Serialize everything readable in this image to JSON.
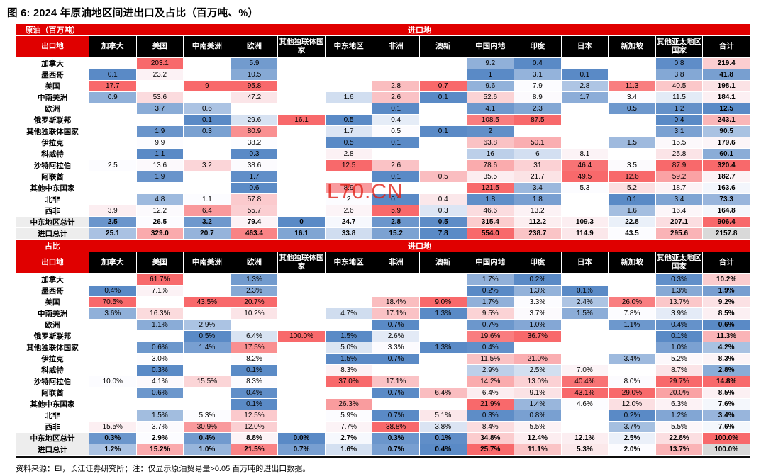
{
  "title": "图 6: 2024 年原油地区间进出口及占比（百万吨、%）",
  "footer": {
    "source_note": "资料来源：EI，长江证券研究所；注：仅显示原油贸易量>0.05 百万吨的进出口数据。"
  },
  "watermark": "L70.CN",
  "colors": {
    "header_red": "#E00000",
    "header_black": "#000000",
    "scale_low": "#5A8AC6",
    "scale_mid": "#FCFCFF",
    "scale_high": "#F8696B",
    "summary_label_bg": "#EDEDED",
    "grand_total_bg": "#D9D9D9"
  },
  "chart_data": [
    {
      "type": "heatmap",
      "unit_label": "原油（百万吨）",
      "corner_label": "出口地",
      "top_axis_label": "进口地",
      "columns": [
        "加拿大",
        "美国",
        "中南美洲",
        "欧洲",
        "其他独联体国家",
        "中东地区",
        "非洲",
        "澳新",
        "中国内地",
        "印度",
        "日本",
        "新加坡",
        "其他亚太地区国家",
        "合计"
      ],
      "rows": [
        {
          "label": "加拿大",
          "summary": false,
          "values": [
            "",
            "203.1",
            "",
            "5.9",
            "",
            "",
            "",
            "",
            "9.2",
            "0.4",
            "",
            "",
            "0.8",
            "219.4"
          ]
        },
        {
          "label": "墨西哥",
          "summary": false,
          "values": [
            "0.1",
            "23.2",
            "",
            "10.5",
            "",
            "",
            "",
            "",
            "1",
            "3.1",
            "0.1",
            "",
            "3.8",
            "41.8"
          ]
        },
        {
          "label": "美国",
          "summary": false,
          "values": [
            "17.7",
            "",
            "9",
            "95.8",
            "",
            "",
            "2.8",
            "0.7",
            "9.6",
            "7.9",
            "2.8",
            "11.3",
            "40.5",
            "198.1"
          ]
        },
        {
          "label": "中南美洲",
          "summary": false,
          "values": [
            "0.9",
            "53.6",
            "",
            "47.2",
            "",
            "1.6",
            "2.6",
            "0.1",
            "52.6",
            "8.9",
            "1.7",
            "3.4",
            "11.5",
            "184.1"
          ]
        },
        {
          "label": "欧洲",
          "summary": false,
          "values": [
            "",
            "3.7",
            "0.6",
            "",
            "",
            "",
            "0.1",
            "",
            "4.1",
            "2.3",
            "",
            "0.5",
            "1.2",
            "12.5"
          ]
        },
        {
          "label": "俄罗斯联邦",
          "summary": false,
          "values": [
            "",
            "",
            "0.1",
            "29.6",
            "16.1",
            "0.5",
            "0.4",
            "",
            "108.5",
            "87.5",
            "",
            "",
            "0.4",
            "243.1"
          ]
        },
        {
          "label": "其他独联体国家",
          "summary": false,
          "values": [
            "",
            "1.9",
            "0.3",
            "80.9",
            "",
            "1.7",
            "0.5",
            "0.1",
            "2",
            "",
            "",
            "",
            "3.1",
            "90.5"
          ]
        },
        {
          "label": "伊拉克",
          "summary": false,
          "values": [
            "",
            "9.9",
            "",
            "38.2",
            "",
            "0.5",
            "0.1",
            "",
            "63.8",
            "50.1",
            "",
            "1.5",
            "15.5",
            "179.6"
          ]
        },
        {
          "label": "科威特",
          "summary": false,
          "values": [
            "",
            "1.1",
            "",
            "0.3",
            "",
            "2.8",
            "",
            "",
            "16",
            "6",
            "8.1",
            "",
            "25.8",
            "60.1"
          ]
        },
        {
          "label": "沙特阿拉伯",
          "summary": false,
          "values": [
            "2.5",
            "13.6",
            "3.2",
            "38.6",
            "",
            "12.5",
            "2.6",
            "",
            "78.6",
            "31",
            "46.4",
            "3.5",
            "87.9",
            "320.4"
          ]
        },
        {
          "label": "阿联酋",
          "summary": false,
          "values": [
            "",
            "1.9",
            "",
            "1.7",
            "",
            "",
            "0.1",
            "0.5",
            "35.5",
            "21.7",
            "49.5",
            "12.6",
            "59.2",
            "182.7"
          ]
        },
        {
          "label": "其他中东国家",
          "summary": false,
          "values": [
            "",
            "",
            "",
            "0.6",
            "",
            "8.9",
            "",
            "",
            "121.5",
            "3.4",
            "5.3",
            "5.2",
            "18.7",
            "163.6"
          ]
        },
        {
          "label": "北非",
          "summary": false,
          "values": [
            "",
            "4.8",
            "1.1",
            "57.8",
            "",
            "2",
            "0.1",
            "0.4",
            "1.8",
            "1.8",
            "",
            "0.1",
            "3.4",
            "73.3"
          ]
        },
        {
          "label": "西非",
          "summary": false,
          "values": [
            "3.9",
            "12.2",
            "6.4",
            "55.7",
            "",
            "2.6",
            "5.9",
            "0.3",
            "46.6",
            "13.2",
            "",
            "1.6",
            "16.4",
            "164.8"
          ]
        },
        {
          "label": "中东地区总计",
          "summary": true,
          "values": [
            "2.5",
            "26.5",
            "3.2",
            "79.4",
            "0",
            "24.7",
            "2.8",
            "0.5",
            "315.4",
            "112.2",
            "109.3",
            "22.8",
            "207.1",
            "906.4"
          ]
        },
        {
          "label": "进口总计",
          "summary": true,
          "grand_total": true,
          "values": [
            "25.1",
            "329.0",
            "20.7",
            "463.4",
            "16.1",
            "33.8",
            "15.2",
            "7.8",
            "554.0",
            "238.7",
            "114.9",
            "43.5",
            "295.6",
            "2157.8"
          ]
        }
      ]
    },
    {
      "type": "heatmap",
      "unit_label": "占比",
      "corner_label": "出口地",
      "top_axis_label": "进口地",
      "columns": [
        "加拿大",
        "美国",
        "中南美洲",
        "欧洲",
        "其他独联体国家",
        "中东地区",
        "非洲",
        "澳新",
        "中国内地",
        "印度",
        "日本",
        "新加坡",
        "其他亚太地区国家",
        "合计"
      ],
      "rows": [
        {
          "label": "加拿大",
          "summary": false,
          "values": [
            "",
            "61.7%",
            "",
            "1.3%",
            "",
            "",
            "",
            "",
            "1.7%",
            "0.2%",
            "",
            "",
            "0.3%",
            "10.2%"
          ]
        },
        {
          "label": "墨西哥",
          "summary": false,
          "values": [
            "0.4%",
            "7.1%",
            "",
            "2.3%",
            "",
            "",
            "",
            "",
            "0.2%",
            "1.3%",
            "0.1%",
            "",
            "1.3%",
            "1.9%"
          ]
        },
        {
          "label": "美国",
          "summary": false,
          "values": [
            "70.5%",
            "",
            "43.5%",
            "20.7%",
            "",
            "",
            "18.4%",
            "9.0%",
            "1.7%",
            "3.3%",
            "2.4%",
            "26.0%",
            "13.7%",
            "9.2%"
          ]
        },
        {
          "label": "中南美洲",
          "summary": false,
          "values": [
            "3.6%",
            "16.3%",
            "",
            "10.2%",
            "",
            "4.7%",
            "17.1%",
            "1.3%",
            "9.5%",
            "3.7%",
            "1.5%",
            "7.8%",
            "3.9%",
            "8.5%"
          ]
        },
        {
          "label": "欧洲",
          "summary": false,
          "values": [
            "",
            "1.1%",
            "2.9%",
            "",
            "",
            "",
            "0.7%",
            "",
            "0.7%",
            "1.0%",
            "",
            "1.1%",
            "0.4%",
            "0.6%"
          ]
        },
        {
          "label": "俄罗斯联邦",
          "summary": false,
          "values": [
            "",
            "",
            "0.5%",
            "6.4%",
            "100.0%",
            "1.5%",
            "2.6%",
            "",
            "19.6%",
            "36.7%",
            "",
            "",
            "0.1%",
            "11.3%"
          ]
        },
        {
          "label": "其他独联体国家",
          "summary": false,
          "values": [
            "",
            "0.6%",
            "1.4%",
            "17.5%",
            "",
            "5.0%",
            "3.3%",
            "1.3%",
            "0.4%",
            "",
            "",
            "",
            "1.0%",
            "4.2%"
          ]
        },
        {
          "label": "伊拉克",
          "summary": false,
          "values": [
            "",
            "3.0%",
            "",
            "8.2%",
            "",
            "1.5%",
            "0.7%",
            "",
            "11.5%",
            "21.0%",
            "",
            "3.4%",
            "5.2%",
            "8.3%"
          ]
        },
        {
          "label": "科威特",
          "summary": false,
          "values": [
            "",
            "0.3%",
            "",
            "0.1%",
            "",
            "8.3%",
            "",
            "",
            "2.9%",
            "2.5%",
            "7.0%",
            "",
            "8.7%",
            "2.8%"
          ]
        },
        {
          "label": "沙特阿拉伯",
          "summary": false,
          "values": [
            "10.0%",
            "4.1%",
            "15.5%",
            "8.3%",
            "",
            "37.0%",
            "17.1%",
            "",
            "14.2%",
            "13.0%",
            "40.4%",
            "8.0%",
            "29.7%",
            "14.8%"
          ]
        },
        {
          "label": "阿联酋",
          "summary": false,
          "values": [
            "",
            "0.6%",
            "",
            "0.4%",
            "",
            "",
            "0.7%",
            "6.4%",
            "6.4%",
            "9.1%",
            "43.1%",
            "29.0%",
            "20.0%",
            "8.5%"
          ]
        },
        {
          "label": "其他中东国家",
          "summary": false,
          "values": [
            "",
            "",
            "",
            "0.1%",
            "",
            "26.3%",
            "",
            "",
            "21.9%",
            "1.4%",
            "4.6%",
            "12.0%",
            "6.3%",
            "7.6%"
          ]
        },
        {
          "label": "北非",
          "summary": false,
          "values": [
            "",
            "1.5%",
            "5.3%",
            "12.5%",
            "",
            "5.9%",
            "0.7%",
            "5.1%",
            "0.3%",
            "0.8%",
            "",
            "0.2%",
            "1.2%",
            "3.4%"
          ]
        },
        {
          "label": "西非",
          "summary": false,
          "values": [
            "15.5%",
            "3.7%",
            "30.9%",
            "12.0%",
            "",
            "7.7%",
            "38.8%",
            "3.8%",
            "8.4%",
            "5.5%",
            "",
            "3.7%",
            "5.5%",
            "7.6%"
          ]
        },
        {
          "label": "中东地区总计",
          "summary": true,
          "values": [
            "0.3%",
            "2.9%",
            "0.4%",
            "8.8%",
            "0.0%",
            "2.7%",
            "0.3%",
            "0.1%",
            "34.8%",
            "12.4%",
            "12.1%",
            "2.5%",
            "22.8%",
            "100.0%"
          ]
        },
        {
          "label": "进口总计",
          "summary": true,
          "grand_total": true,
          "values": [
            "1.2%",
            "15.2%",
            "1.0%",
            "21.5%",
            "0.7%",
            "1.6%",
            "0.7%",
            "0.4%",
            "25.7%",
            "11.1%",
            "5.3%",
            "2.0%",
            "13.7%",
            "100.0%"
          ]
        }
      ]
    }
  ]
}
